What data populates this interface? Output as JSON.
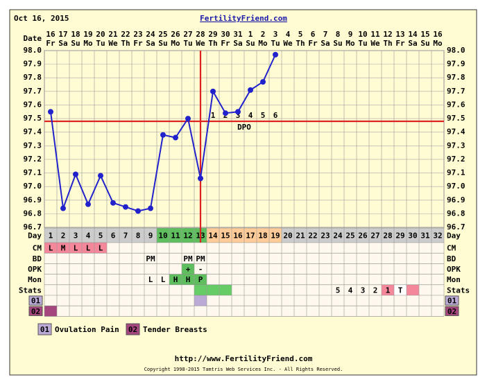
{
  "chart_data": {
    "type": "line",
    "date": "Oct 16, 2015",
    "title": "FertilityFriend.com",
    "date_label": "Date",
    "day_label": "Day",
    "dates": [
      16,
      17,
      18,
      19,
      20,
      21,
      22,
      23,
      24,
      25,
      26,
      27,
      28,
      29,
      30,
      31,
      1,
      2,
      3,
      4,
      5,
      6,
      7,
      8,
      9,
      10,
      11,
      12,
      13,
      14,
      15,
      16
    ],
    "weekdays": [
      "Fr",
      "Sa",
      "Su",
      "Mo",
      "Tu",
      "We",
      "Th",
      "Fr",
      "Sa",
      "Su",
      "Mo",
      "Tu",
      "We",
      "Th",
      "Fr",
      "Sa",
      "Su",
      "Mo",
      "Tu",
      "We",
      "Th",
      "Fr",
      "Sa",
      "Su",
      "Mo",
      "Tu",
      "We",
      "Th",
      "Fr",
      "Sa",
      "Su",
      "Mo"
    ],
    "categories": [
      1,
      2,
      3,
      4,
      5,
      6,
      7,
      8,
      9,
      10,
      11,
      12,
      13,
      14,
      15,
      16,
      17,
      18,
      19,
      20,
      21,
      22,
      23,
      24,
      25,
      26,
      27,
      28,
      29,
      30,
      31,
      32
    ],
    "day_colors": [
      "#cccccc",
      "#cccccc",
      "#cccccc",
      "#cccccc",
      "#cccccc",
      "#cccccc",
      "#cccccc",
      "#cccccc",
      "#cccccc",
      "#5fbf5f",
      "#5fbf5f",
      "#5fbf5f",
      "#5fbf5f",
      "#ffcc99",
      "#ffcc99",
      "#ffcc99",
      "#ffcc99",
      "#ffcc99",
      "#ffcc99",
      "#cccccc",
      "#cccccc",
      "#cccccc",
      "#cccccc",
      "#cccccc",
      "#cccccc",
      "#cccccc",
      "#cccccc",
      "#cccccc",
      "#cccccc",
      "#cccccc",
      "#cccccc",
      "#cccccc"
    ],
    "values": [
      97.55,
      96.84,
      97.09,
      96.87,
      97.08,
      96.88,
      96.85,
      96.82,
      96.84,
      97.38,
      97.36,
      97.5,
      97.06,
      97.7,
      97.54,
      97.55,
      97.71,
      97.77,
      97.97,
      null,
      null,
      null,
      null,
      null,
      null,
      null,
      null,
      null,
      null,
      null,
      null,
      null
    ],
    "color": "#2222cc",
    "ylim": [
      96.7,
      98.0
    ],
    "yticks": [
      96.7,
      96.8,
      96.9,
      {
        "value": 97.0,
        "label": "97.0"
      },
      97.1,
      97.2,
      97.3,
      97.4,
      97.5,
      97.6,
      97.7,
      97.8,
      97.9,
      {
        "value": 98.0,
        "label": "98.0"
      }
    ],
    "grid": true,
    "coverline": 97.48,
    "ovulation_day": 13,
    "line_color": "#dd2222",
    "dpo": [
      null,
      null,
      null,
      null,
      null,
      null,
      null,
      null,
      null,
      null,
      null,
      null,
      null,
      1,
      2,
      3,
      4,
      5,
      6,
      null,
      null,
      null,
      null,
      null,
      null,
      null,
      null,
      null,
      null,
      null,
      null,
      null
    ],
    "dpo_label": "DPO",
    "rows": [
      {
        "name": "CM",
        "cells": {
          "1": "L",
          "2": "M",
          "3": "L",
          "4": "L",
          "5": "L"
        },
        "colors": {
          "1": "#f4879a",
          "2": "#f4879a",
          "3": "#f4879a",
          "4": "#f4879a",
          "5": "#f4879a"
        }
      },
      {
        "name": "BD",
        "cells": {
          "9": "PM",
          "12": "PM",
          "13": "PM"
        },
        "colors": {}
      },
      {
        "name": "OPK",
        "cells": {
          "12": "+",
          "13": "-"
        },
        "colors": {
          "12": "#5fbf5f"
        }
      },
      {
        "name": "Mon",
        "cells": {
          "9": "L",
          "10": "L",
          "11": "H",
          "12": "H",
          "13": "P"
        },
        "colors": {
          "11": "#5fbf5f",
          "12": "#5fbf5f",
          "13": "#5fbf5f"
        }
      },
      {
        "name": "Stats",
        "cells": {
          "24": 5,
          "25": 4,
          "26": 3,
          "27": 2,
          "28": 1,
          "29": "T"
        },
        "colors": {
          "13": "#66cc66",
          "14": "#66cc66",
          "15": "#66cc66",
          "28": "#f4879a",
          "29": "#ffffff",
          "30": "#f4879a"
        }
      }
    ],
    "symptoms": [
      {
        "code": "01",
        "name": "Ovulation Pain",
        "color": "#bbaad6",
        "days": [
          13
        ]
      },
      {
        "code": "02",
        "name": "Tender Breasts",
        "color": "#a5467e",
        "days": [
          1
        ]
      }
    ],
    "url": "http://www.FertilityFriend.com",
    "copyright": "Copyright 1998-2015 Tamtris Web Services Inc. - All Rights Reserved."
  }
}
